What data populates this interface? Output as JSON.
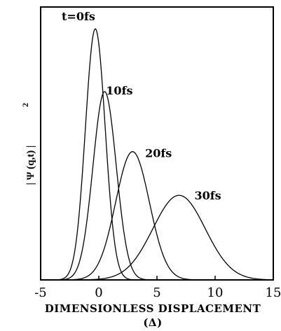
{
  "chart_data": {
    "type": "line",
    "xlabel_line1": "DIMENSIONLESS DISPLACEMENT",
    "xlabel_line2": "(Δ)",
    "ylabel": "| Ψ (q,t) |",
    "ylabel_superscript": "2",
    "xlim": [
      -5,
      15
    ],
    "ylim": [
      0,
      1.0
    ],
    "xticks": [
      -5,
      0,
      5,
      10,
      15
    ],
    "xtick_labels": [
      "-5",
      "0",
      "5",
      "10",
      "15"
    ],
    "grid": false,
    "legend": "none",
    "series": [
      {
        "name": "t=0fs",
        "center": -0.3,
        "sigma": 0.85,
        "peak": 0.92
      },
      {
        "name": "10fs",
        "center": 0.5,
        "sigma": 1.0,
        "peak": 0.69
      },
      {
        "name": "20fs",
        "center": 2.9,
        "sigma": 1.45,
        "peak": 0.47
      },
      {
        "name": "30fs",
        "center": 6.9,
        "sigma": 2.25,
        "peak": 0.31
      }
    ]
  }
}
